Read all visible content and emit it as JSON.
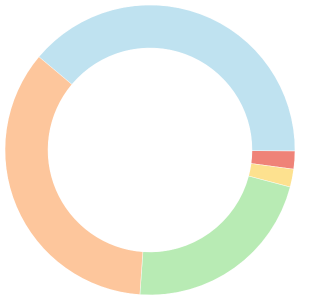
{
  "chart_data": {
    "type": "doughnut",
    "values": [
      39,
      2,
      2,
      22,
      35
    ],
    "colors": [
      "#bfe2f0",
      "#ef8378",
      "#fde18f",
      "#b8ebb4",
      "#fdc69c"
    ]
  }
}
